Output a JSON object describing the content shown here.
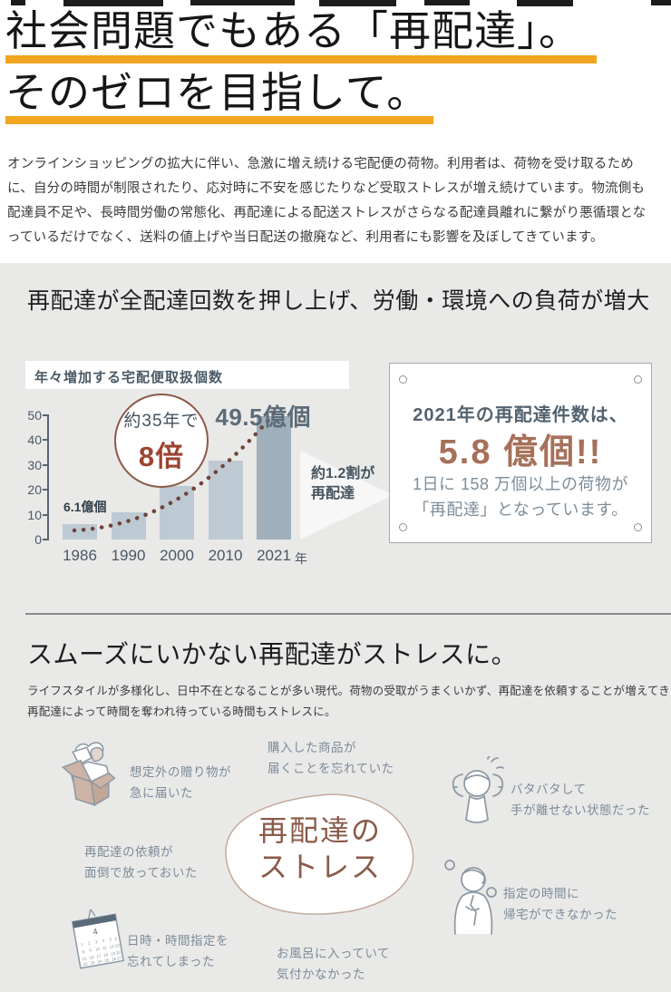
{
  "page": {
    "background": "#ffffff",
    "section_background": "#e9e9e8",
    "accent_underline_color": "#f2a51f"
  },
  "hero": {
    "title_line1": "社会問題でもある「再配達」。",
    "title_line2": "そのゼロを目指して。"
  },
  "intro": {
    "text": "オンラインショッピングの拡大に伴い、急激に増え続ける宅配便の荷物。利用者は、荷物を受け取るために、自分の時間が制限されたり、応対時に不安を感じたりなど受取ストレスが増え続けています。物流側も配達員不足や、長時間労働の常態化、再配達による配送ストレスがさらなる配達員離れに繋がり悪循環となっているだけでなく、送料の値上げや当日配送の撤廃など、利用者にも影響を及ぼしてきています。"
  },
  "impact_section": {
    "heading": "再配達が全配達回数を押し上げ、労働・環境への負荷が増大"
  },
  "chart_data": {
    "type": "bar",
    "title": "年々増加する宅配便取扱個数",
    "categories": [
      "1986",
      "1990",
      "2000",
      "2010",
      "2021"
    ],
    "values": [
      6.1,
      11,
      21.5,
      31.5,
      49.5
    ],
    "x_unit_suffix": "年",
    "ylim": [
      0,
      50
    ],
    "yticks": [
      0,
      10,
      20,
      30,
      40,
      50
    ],
    "bar_color": "#becad3",
    "highlight_bar_color": "#9fafbb",
    "highlight_index": 4,
    "annotations": {
      "first_bar_label": "6.1億個",
      "last_bar_label": "49.5億個",
      "growth_circle_line1": "約35年で",
      "growth_circle_line2": "8倍",
      "arrow_line1": "約1.2割が",
      "arrow_line2": "再配達",
      "trend_dot_color": "#6f4337"
    }
  },
  "fact_card": {
    "heading": "2021年の再配達件数は、",
    "big_value": "5.8 億個!!",
    "big_value_color": "#a6705a",
    "body_line1": "1日に 158 万個以上の荷物が",
    "body_line2": "「再配達」となっています。"
  },
  "stress_section": {
    "heading": "スムーズにいかない再配達がストレスに。",
    "body_line1": "ライフスタイルが多様化し、日中不在となることが多い現代。荷物の受取がうまくいかず、再配達を依頼することが増えてきました。",
    "body_line2": "再配達によって時間を奪われ待っている時間もストレスに。",
    "center_bubble": {
      "line1": "再配達の",
      "line2": "ストレス",
      "text_color": "#8a5a48"
    },
    "items": [
      {
        "icon": "gift-box-icon",
        "lines": [
          "想定外の贈り物が",
          "急に届いた"
        ]
      },
      {
        "icon": "none",
        "lines": [
          "購入した商品が",
          "届くことを忘れていた"
        ]
      },
      {
        "icon": "flustered-person-icon",
        "lines": [
          "バタバタして",
          "手が離せない状態だった"
        ]
      },
      {
        "icon": "none",
        "lines": [
          "再配達の依頼が",
          "面倒で放っておいた"
        ]
      },
      {
        "icon": "worried-person-icon",
        "lines": [
          "指定の時間に",
          "帰宅ができなかった"
        ]
      },
      {
        "icon": "calendar-icon",
        "lines": [
          "日時・時間指定を",
          "忘れてしまった"
        ]
      },
      {
        "icon": "none",
        "lines": [
          "お風呂に入っていて",
          "気付かなかった"
        ]
      }
    ]
  }
}
